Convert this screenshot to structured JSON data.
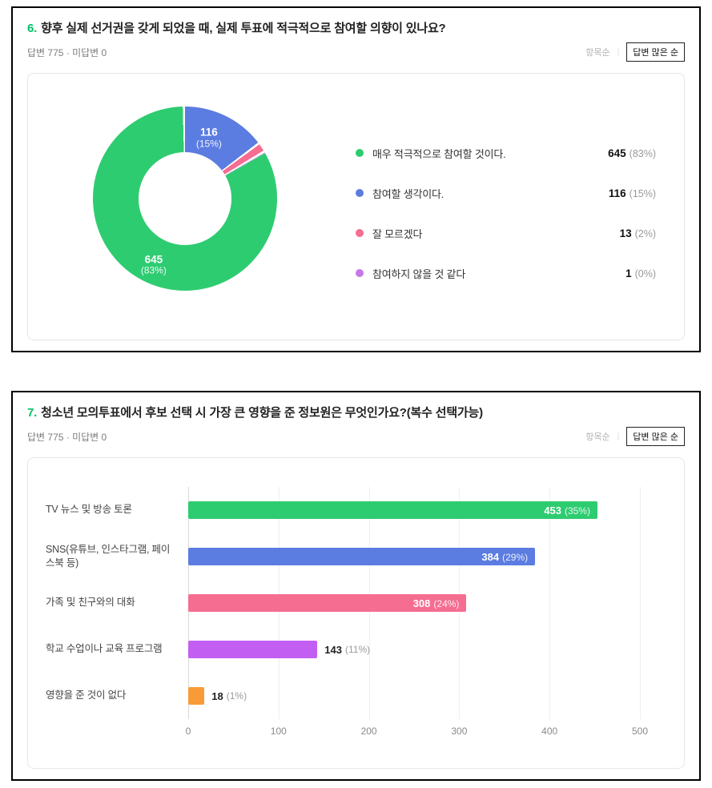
{
  "sort_control": {
    "by_item": "항목순",
    "divider": "|",
    "by_answers": "답변 많은 순"
  },
  "q6": {
    "number": "6.",
    "title": "향후 실제 선거권을 갖게 되었을 때, 실제 투표에 적극적으로 참여할 의향이 있나요?",
    "meta": "답변 775 · 미답변 0"
  },
  "q7": {
    "number": "7.",
    "title": "청소년 모의투표에서 후보 선택 시 가장 큰 영향을 준 정보원은 무엇인가요?(복수 선택가능)",
    "meta": "답변 775 · 미답변 0"
  },
  "colors": {
    "accent_question_number": "#00c364",
    "card_border": "#000000",
    "panel_border": "#e6e6e6"
  },
  "chart_data": [
    {
      "type": "pie",
      "subtype": "donut",
      "question": "6",
      "total_answers": 775,
      "labels": [
        "매우 적극적으로 참여할 것이다.",
        "참여할 생각이다.",
        "잘 모르겠다",
        "참여하지 않을 것 같다"
      ],
      "values": [
        645,
        116,
        13,
        1
      ],
      "percents": [
        83,
        15,
        2,
        0
      ],
      "pct_labels": [
        "(83%)",
        "(15%)",
        "(2%)",
        "(0%)"
      ],
      "colors": [
        "#2ecc71",
        "#5b7ce0",
        "#f56d91",
        "#c678e8"
      ],
      "legend_position": "right",
      "slice_labels_shown": [
        "645 (83%)",
        "116 (15%)"
      ]
    },
    {
      "type": "bar",
      "orientation": "horizontal",
      "question": "7",
      "total_answers": 775,
      "categories": [
        "TV 뉴스 및 방송 토론",
        "SNS(유튜브, 인스타그램, 페이스북 등)",
        "가족 및 친구와의 대화",
        "학교 수업이나 교육 프로그램",
        "영향을 준 것이 없다"
      ],
      "values": [
        453,
        384,
        308,
        143,
        18
      ],
      "percents": [
        35,
        29,
        24,
        11,
        1
      ],
      "pct_labels": [
        "(35%)",
        "(29%)",
        "(24%)",
        "(11%)",
        "(1%)"
      ],
      "colors": [
        "#2ecc71",
        "#5b7ce0",
        "#f56d91",
        "#c25ff2",
        "#f99a38"
      ],
      "xlim": [
        0,
        500
      ],
      "x_ticks": [
        0,
        100,
        200,
        300,
        400,
        500
      ],
      "grid": true
    }
  ]
}
